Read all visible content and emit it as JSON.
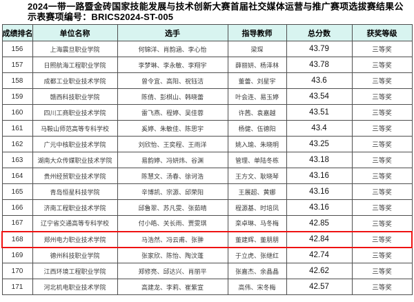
{
  "page": {
    "title": "2024一带一路暨金砖国家技能发展与技术创新大赛首届社交媒体运营与推广赛项选拔赛结果公示表赛项编号：BRICS2024-ST-005"
  },
  "table": {
    "columns": [
      "成绩排名",
      "单位名称",
      "选手",
      "指导教师",
      "总分数",
      "获奖等级"
    ],
    "header_bg": "#d8f4f0",
    "highlight_color": "#ee1111",
    "highlighted_rank": "168",
    "rows": [
      {
        "rank": "156",
        "unit": "上海震旦职业学院",
        "players": "何锦洋、肖韵涵、李心怡",
        "teachers": "梁琛",
        "score": "43.79",
        "award": "三等奖"
      },
      {
        "rank": "157",
        "unit": "日照航海工程职业学院",
        "players": "李梦琳、李永敏、李翔宇",
        "teachers": "薛丽妍、杨泽林",
        "score": "43.78",
        "award": "三等奖"
      },
      {
        "rank": "158",
        "unit": "成都工业职业技术学院",
        "players": "曾令宜、高阳、祝钰洁",
        "teachers": "董蕾、刘星宇",
        "score": "43.6",
        "award": "三等奖"
      },
      {
        "rank": "159",
        "unit": "赣西科技职业学院",
        "players": "陈倩、彭棋山、韩晓蕾",
        "teachers": "叶会连、易玉婷",
        "score": "43.54",
        "award": "三等奖"
      },
      {
        "rank": "160",
        "unit": "四川工商职业技术学院",
        "players": "雷飞燕、程婷、吴佳蓉",
        "teachers": "许茜、袁嘉越",
        "score": "43.51",
        "award": "三等奖"
      },
      {
        "rank": "161",
        "unit": "马鞍山师范高等专科学校",
        "players": "奚婷、朱敏佳、陈思宇",
        "teachers": "杨健、伍德阳",
        "score": "43.4",
        "award": "三等奖"
      },
      {
        "rank": "162",
        "unit": "广元中核职业技术学院",
        "players": "刘欣怡、王奕程、王雨洋",
        "teachers": "姚入瑜、朱晓明",
        "score": "43.25",
        "award": "三等奖"
      },
      {
        "rank": "163",
        "unit": "湖南大众传媒职业技术学院",
        "players": "易韵婷、冯妍炜、谷渊",
        "teachers": "管理、单陆冬栋",
        "score": "43.18",
        "award": "三等奖"
      },
      {
        "rank": "164",
        "unit": "贵州经贸职业技术学院",
        "players": "陈慧文、汤春、徐诃浩",
        "teachers": "王方文、耿晓琴",
        "score": "43.16",
        "award": "三等奖"
      },
      {
        "rank": "165",
        "unit": "青岛恒星科技学院",
        "players": "辛博凯、宗源、邱荣阳",
        "teachers": "王展超、黄娜",
        "score": "43.16",
        "award": "三等奖"
      },
      {
        "rank": "166",
        "unit": "济南工程职业技术学院",
        "players": "邱鲁翠、苏凡雯、张茹晴",
        "teachers": "程源基、时培凤",
        "score": "43.16",
        "award": "三等奖"
      },
      {
        "rank": "167",
        "unit": "辽宁省交通高等专科学校",
        "players": "付小皓、关长雨、贾雯琪",
        "teachers": "栾卓琳、马冬梅",
        "score": "42.85",
        "award": "三等奖"
      },
      {
        "rank": "168",
        "unit": "郑州电力职业技术学院",
        "players": "马浩然、冯云甫、张翀",
        "teachers": "董建辉、董朋朋",
        "score": "42.84",
        "award": "三等奖"
      },
      {
        "rank": "169",
        "unit": "德州科技职业学院",
        "players": "张家欣、陈怡、陶汶蓬",
        "teachers": "于立虎、张继红",
        "score": "42.74",
        "award": "三等奖"
      },
      {
        "rank": "170",
        "unit": "江西环境工程职业学院",
        "players": "郑修亮、邱达兴、肖丽平",
        "teachers": "张嘉杰、余晶晶",
        "score": "42.62",
        "award": "三等奖"
      },
      {
        "rank": "171",
        "unit": "河北机电职业技术学院",
        "players": "高建龙、李莉、崔紫宣",
        "teachers": "高伟、宋冬梅",
        "score": "42.57",
        "award": "三等奖"
      }
    ]
  }
}
